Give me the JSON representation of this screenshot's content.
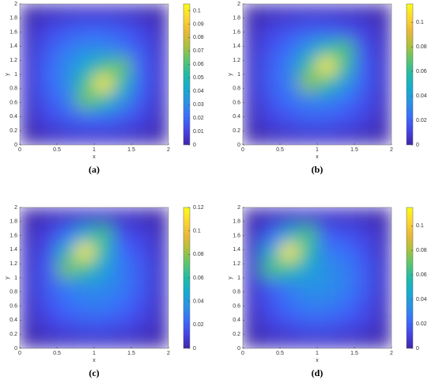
{
  "chart_data": [
    {
      "type": "heatmap",
      "caption": "(a)",
      "xlabel": "x",
      "ylabel": "y",
      "x": [
        0.125,
        0.375,
        0.625,
        0.875,
        1.125,
        1.375,
        1.625,
        1.875
      ],
      "y": [
        0.125,
        0.375,
        0.625,
        0.875,
        1.125,
        1.375,
        1.625,
        1.875
      ],
      "z": [
        [
          0.001,
          0.004,
          0.006,
          0.007,
          0.007,
          0.006,
          0.004,
          0.001
        ],
        [
          0.004,
          0.011,
          0.016,
          0.019,
          0.019,
          0.016,
          0.011,
          0.004
        ],
        [
          0.006,
          0.016,
          0.024,
          0.065,
          0.052,
          0.031,
          0.016,
          0.006
        ],
        [
          0.007,
          0.019,
          0.029,
          0.057,
          0.1,
          0.052,
          0.019,
          0.007
        ],
        [
          0.007,
          0.019,
          0.029,
          0.041,
          0.057,
          0.065,
          0.019,
          0.007
        ],
        [
          0.006,
          0.016,
          0.024,
          0.029,
          0.029,
          0.024,
          0.016,
          0.006
        ],
        [
          0.004,
          0.011,
          0.016,
          0.019,
          0.019,
          0.016,
          0.011,
          0.004
        ],
        [
          0.001,
          0.004,
          0.006,
          0.007,
          0.007,
          0.006,
          0.004,
          0.001
        ]
      ],
      "xlim": [
        0,
        2
      ],
      "ylim": [
        0,
        2
      ],
      "xticks": [
        0,
        0.5,
        1,
        1.5,
        2
      ],
      "yticks": [
        0,
        0.2,
        0.4,
        0.6,
        0.8,
        1,
        1.2,
        1.4,
        1.6,
        1.8,
        2
      ],
      "clim": [
        0,
        0.105
      ],
      "cticks": [
        0,
        0.01,
        0.02,
        0.03,
        0.04,
        0.05,
        0.06,
        0.07,
        0.08,
        0.09,
        0.1
      ],
      "colormap": [
        "#3e26a8",
        "#4743e6",
        "#3a6dfd",
        "#2a92e5",
        "#14acd0",
        "#20bba7",
        "#5ac56f",
        "#a9c23b",
        "#e9b737",
        "#fcd62f",
        "#f9fb15"
      ]
    },
    {
      "type": "heatmap",
      "caption": "(b)",
      "xlabel": "x",
      "ylabel": "y",
      "x": [
        0.125,
        0.375,
        0.625,
        0.875,
        1.125,
        1.375,
        1.625,
        1.875
      ],
      "y": [
        0.125,
        0.375,
        0.625,
        0.875,
        1.125,
        1.375,
        1.625,
        1.875
      ],
      "z": [
        [
          0.001,
          0.004,
          0.006,
          0.007,
          0.007,
          0.006,
          0.004,
          0.001
        ],
        [
          0.004,
          0.011,
          0.016,
          0.019,
          0.019,
          0.016,
          0.011,
          0.004
        ],
        [
          0.006,
          0.016,
          0.024,
          0.029,
          0.029,
          0.024,
          0.016,
          0.006
        ],
        [
          0.007,
          0.019,
          0.029,
          0.076,
          0.061,
          0.037,
          0.019,
          0.007
        ],
        [
          0.007,
          0.019,
          0.029,
          0.061,
          0.11,
          0.061,
          0.019,
          0.007
        ],
        [
          0.006,
          0.016,
          0.024,
          0.037,
          0.056,
          0.066,
          0.016,
          0.006
        ],
        [
          0.004,
          0.011,
          0.016,
          0.019,
          0.019,
          0.016,
          0.011,
          0.004
        ],
        [
          0.001,
          0.004,
          0.006,
          0.007,
          0.007,
          0.006,
          0.004,
          0.001
        ]
      ],
      "xlim": [
        0,
        2
      ],
      "ylim": [
        0,
        2
      ],
      "xticks": [
        0,
        0.5,
        1,
        1.5,
        2
      ],
      "yticks": [
        0,
        0.2,
        0.4,
        0.6,
        0.8,
        1,
        1.2,
        1.4,
        1.6,
        1.8,
        2
      ],
      "clim": [
        0,
        0.115
      ],
      "cticks": [
        0,
        0.02,
        0.04,
        0.06,
        0.08,
        0.1
      ],
      "colormap": [
        "#3e26a8",
        "#4743e6",
        "#3a6dfd",
        "#2a92e5",
        "#14acd0",
        "#20bba7",
        "#5ac56f",
        "#a9c23b",
        "#e9b737",
        "#fcd62f",
        "#f9fb15"
      ]
    },
    {
      "type": "heatmap",
      "caption": "(c)",
      "xlabel": "x",
      "ylabel": "y",
      "x": [
        0.125,
        0.375,
        0.625,
        0.875,
        1.125,
        1.375,
        1.625,
        1.875
      ],
      "y": [
        0.125,
        0.375,
        0.625,
        0.875,
        1.125,
        1.375,
        1.625,
        1.875
      ],
      "z": [
        [
          0.001,
          0.004,
          0.006,
          0.007,
          0.007,
          0.006,
          0.004,
          0.001
        ],
        [
          0.004,
          0.011,
          0.016,
          0.019,
          0.019,
          0.016,
          0.011,
          0.004
        ],
        [
          0.006,
          0.016,
          0.024,
          0.029,
          0.029,
          0.024,
          0.016,
          0.006
        ],
        [
          0.007,
          0.019,
          0.029,
          0.034,
          0.034,
          0.029,
          0.019,
          0.007
        ],
        [
          0.007,
          0.019,
          0.076,
          0.064,
          0.043,
          0.029,
          0.019,
          0.007
        ],
        [
          0.006,
          0.016,
          0.054,
          0.115,
          0.059,
          0.024,
          0.016,
          0.006
        ],
        [
          0.004,
          0.011,
          0.025,
          0.049,
          0.066,
          0.016,
          0.011,
          0.004
        ],
        [
          0.001,
          0.004,
          0.006,
          0.007,
          0.007,
          0.006,
          0.004,
          0.001
        ]
      ],
      "xlim": [
        0,
        2
      ],
      "ylim": [
        0,
        2
      ],
      "xticks": [
        0,
        0.5,
        1,
        1.5,
        2
      ],
      "yticks": [
        0,
        0.2,
        0.4,
        0.6,
        0.8,
        1,
        1.2,
        1.4,
        1.6,
        1.8,
        2
      ],
      "clim": [
        0,
        0.12
      ],
      "cticks": [
        0,
        0.02,
        0.04,
        0.06,
        0.08,
        0.1,
        0.12
      ],
      "colormap": [
        "#3e26a8",
        "#4743e6",
        "#3a6dfd",
        "#2a92e5",
        "#14acd0",
        "#20bba7",
        "#5ac56f",
        "#a9c23b",
        "#e9b737",
        "#fcd62f",
        "#f9fb15"
      ]
    },
    {
      "type": "heatmap",
      "caption": "(d)",
      "xlabel": "x",
      "ylabel": "y",
      "x": [
        0.125,
        0.375,
        0.625,
        0.875,
        1.125,
        1.375,
        1.625,
        1.875
      ],
      "y": [
        0.125,
        0.375,
        0.625,
        0.875,
        1.125,
        1.375,
        1.625,
        1.875
      ],
      "z": [
        [
          0.001,
          0.004,
          0.006,
          0.007,
          0.007,
          0.006,
          0.004,
          0.001
        ],
        [
          0.004,
          0.011,
          0.016,
          0.019,
          0.019,
          0.016,
          0.011,
          0.004
        ],
        [
          0.006,
          0.016,
          0.024,
          0.029,
          0.029,
          0.024,
          0.016,
          0.006
        ],
        [
          0.007,
          0.019,
          0.029,
          0.034,
          0.034,
          0.029,
          0.019,
          0.007
        ],
        [
          0.007,
          0.066,
          0.059,
          0.043,
          0.034,
          0.029,
          0.019,
          0.007
        ],
        [
          0.006,
          0.046,
          0.11,
          0.059,
          0.029,
          0.024,
          0.016,
          0.006
        ],
        [
          0.004,
          0.02,
          0.046,
          0.066,
          0.019,
          0.016,
          0.011,
          0.004
        ],
        [
          0.001,
          0.004,
          0.006,
          0.007,
          0.007,
          0.006,
          0.004,
          0.001
        ]
      ],
      "xlim": [
        0,
        2
      ],
      "ylim": [
        0,
        2
      ],
      "xticks": [
        0,
        0.5,
        1,
        1.5,
        2
      ],
      "yticks": [
        0,
        0.2,
        0.4,
        0.6,
        0.8,
        1,
        1.2,
        1.4,
        1.6,
        1.8,
        2
      ],
      "clim": [
        0,
        0.115
      ],
      "cticks": [
        0,
        0.02,
        0.04,
        0.06,
        0.08,
        0.1
      ],
      "colormap": [
        "#3e26a8",
        "#4743e6",
        "#3a6dfd",
        "#2a92e5",
        "#14acd0",
        "#20bba7",
        "#5ac56f",
        "#a9c23b",
        "#e9b737",
        "#fcd62f",
        "#f9fb15"
      ]
    }
  ]
}
